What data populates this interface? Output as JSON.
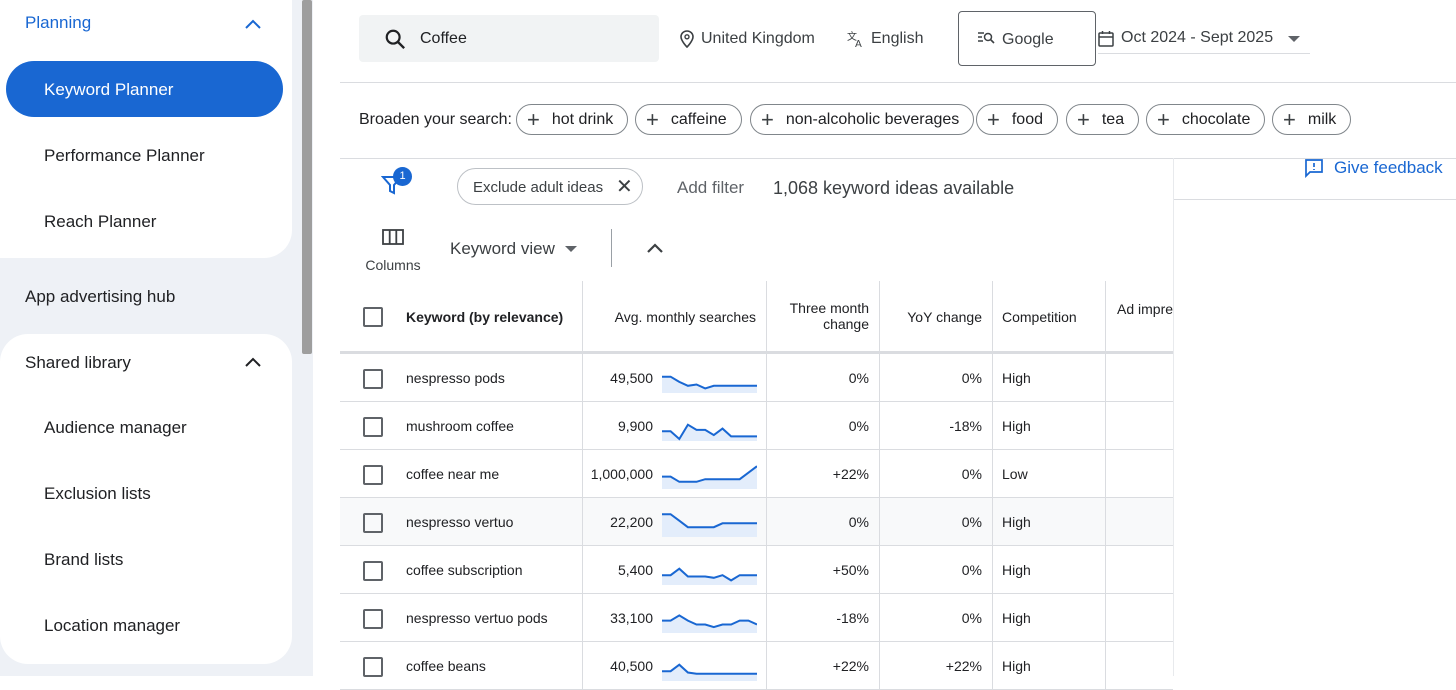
{
  "sidebar": {
    "planning": {
      "title": "Planning",
      "items": [
        "Keyword Planner",
        "Performance Planner",
        "Reach Planner"
      ]
    },
    "app_hub": "App advertising hub",
    "shared_library": {
      "title": "Shared library",
      "items": [
        "Audience manager",
        "Exclusion lists",
        "Brand lists",
        "Location manager"
      ]
    }
  },
  "topbar": {
    "search_value": "Coffee",
    "location": "United Kingdom",
    "language": "English",
    "network": "Google",
    "date_range": "Oct 2024 - Sept 2025"
  },
  "broaden": {
    "label": "Broaden your search:",
    "chips": [
      "hot drink",
      "caffeine",
      "non-alcoholic beverages",
      "food",
      "tea",
      "chocolate",
      "milk"
    ]
  },
  "feedback": "Give feedback",
  "filters": {
    "badge": "1",
    "exclude_chip": "Exclude adult ideas",
    "add_filter": "Add filter",
    "ideas_count": "1,068 keyword ideas available"
  },
  "toolbar": {
    "columns": "Columns",
    "view": "Keyword view"
  },
  "table": {
    "headers": {
      "keyword": "Keyword (by relevance)",
      "avg": "Avg. monthly searches",
      "three_month_l1": "Three month",
      "three_month_l2": "change",
      "yoy": "YoY change",
      "competition": "Competition",
      "ad_impr": "Ad impre"
    },
    "rows": [
      {
        "keyword": "nespresso pods",
        "avg": "49,500",
        "three_month": "0%",
        "yoy": "0%",
        "competition": "High",
        "trend": [
          0.55,
          0.55,
          0.35,
          0.2,
          0.25,
          0.1,
          0.2,
          0.2,
          0.2,
          0.2,
          0.2,
          0.2
        ]
      },
      {
        "keyword": "mushroom coffee",
        "avg": "9,900",
        "three_month": "0%",
        "yoy": "-18%",
        "competition": "High",
        "trend": [
          0.3,
          0.3,
          0.0,
          0.55,
          0.35,
          0.35,
          0.15,
          0.4,
          0.1,
          0.1,
          0.1,
          0.1
        ]
      },
      {
        "keyword": "coffee near me",
        "avg": "1,000,000",
        "three_month": "+22%",
        "yoy": "0%",
        "competition": "Low",
        "trend": [
          0.4,
          0.4,
          0.2,
          0.2,
          0.2,
          0.3,
          0.3,
          0.3,
          0.3,
          0.3,
          0.55,
          0.8
        ]
      },
      {
        "keyword": "nespresso vertuo",
        "avg": "22,200",
        "three_month": "0%",
        "yoy": "0%",
        "competition": "High",
        "trend": [
          0.8,
          0.8,
          0.55,
          0.3,
          0.3,
          0.3,
          0.3,
          0.45,
          0.45,
          0.45,
          0.45,
          0.45
        ]
      },
      {
        "keyword": "coffee subscription",
        "avg": "5,400",
        "three_month": "+50%",
        "yoy": "0%",
        "competition": "High",
        "trend": [
          0.3,
          0.3,
          0.55,
          0.25,
          0.25,
          0.25,
          0.2,
          0.3,
          0.1,
          0.3,
          0.3,
          0.3
        ]
      },
      {
        "keyword": "nespresso vertuo pods",
        "avg": "33,100",
        "three_month": "-18%",
        "yoy": "0%",
        "competition": "High",
        "trend": [
          0.4,
          0.4,
          0.6,
          0.4,
          0.25,
          0.25,
          0.15,
          0.25,
          0.25,
          0.4,
          0.4,
          0.25
        ]
      },
      {
        "keyword": "coffee beans",
        "avg": "40,500",
        "three_month": "+22%",
        "yoy": "+22%",
        "competition": "High",
        "trend": [
          0.3,
          0.3,
          0.55,
          0.25,
          0.2,
          0.2,
          0.2,
          0.2,
          0.2,
          0.2,
          0.2,
          0.2
        ]
      }
    ]
  },
  "colors": {
    "accent": "#1967d2",
    "sidebar_bg": "#eef1f6",
    "sparkline_fill": "#e3edfb"
  }
}
